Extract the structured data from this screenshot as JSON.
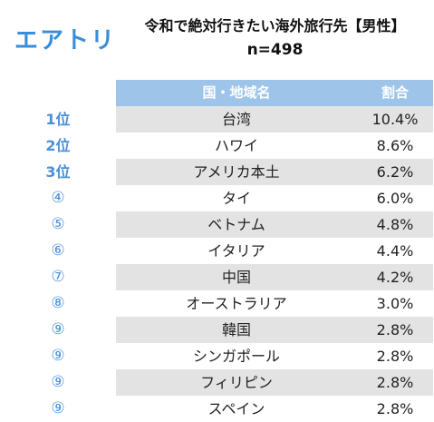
{
  "brand": {
    "logo_text": "エアトリ",
    "color": "#3a8ed8"
  },
  "title": "令和で絶対行きたい海外旅行先【男性】",
  "sample": "n=498",
  "header": {
    "country": "国・地域名",
    "share": "割合"
  },
  "colors": {
    "header_bg": "#9ec4ea",
    "stripe": "#e3e3e3",
    "rank": "#4a90d9"
  },
  "chart_data": {
    "type": "table",
    "title": "令和で絶対行きたい海外旅行先【男性】",
    "subtitle": "n=498",
    "columns": [
      "国・地域名",
      "割合"
    ],
    "rows": [
      {
        "rank": "1位",
        "country": "台湾",
        "pct_label": "10.4%",
        "value": 10.4
      },
      {
        "rank": "2位",
        "country": "ハワイ",
        "pct_label": "8.6%",
        "value": 8.6
      },
      {
        "rank": "3位",
        "country": "アメリカ本土",
        "pct_label": "6.2%",
        "value": 6.2
      },
      {
        "rank": "④",
        "country": "タイ",
        "pct_label": "6.0%",
        "value": 6.0
      },
      {
        "rank": "⑤",
        "country": "ベトナム",
        "pct_label": "4.8%",
        "value": 4.8
      },
      {
        "rank": "⑥",
        "country": "イタリア",
        "pct_label": "4.4%",
        "value": 4.4
      },
      {
        "rank": "⑦",
        "country": "中国",
        "pct_label": "4.2%",
        "value": 4.2
      },
      {
        "rank": "⑧",
        "country": "オーストラリア",
        "pct_label": "3.0%",
        "value": 3.0
      },
      {
        "rank": "⑨",
        "country": "韓国",
        "pct_label": "2.8%",
        "value": 2.8
      },
      {
        "rank": "⑨",
        "country": "シンガポール",
        "pct_label": "2.8%",
        "value": 2.8
      },
      {
        "rank": "⑨",
        "country": "フィリピン",
        "pct_label": "2.8%",
        "value": 2.8
      },
      {
        "rank": "⑨",
        "country": "スペイン",
        "pct_label": "2.8%",
        "value": 2.8
      }
    ]
  }
}
